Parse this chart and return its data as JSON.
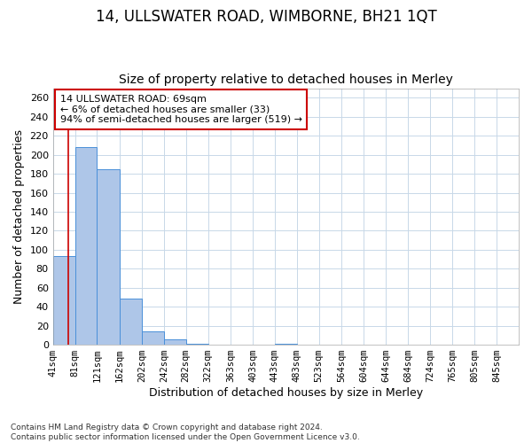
{
  "title": "14, ULLSWATER ROAD, WIMBORNE, BH21 1QT",
  "subtitle": "Size of property relative to detached houses in Merley",
  "xlabel": "Distribution of detached houses by size in Merley",
  "ylabel": "Number of detached properties",
  "bar_left_edges": [
    41,
    81,
    121,
    162,
    202,
    242,
    282,
    322,
    363,
    403,
    443,
    483,
    523,
    564,
    604,
    644,
    684,
    724,
    765,
    805
  ],
  "bar_widths": [
    40,
    40,
    41,
    40,
    40,
    40,
    40,
    41,
    40,
    40,
    40,
    40,
    41,
    40,
    40,
    40,
    40,
    41,
    40,
    40
  ],
  "bar_heights": [
    93,
    208,
    185,
    49,
    14,
    6,
    1,
    0,
    0,
    0,
    1,
    0,
    0,
    0,
    0,
    0,
    0,
    0,
    0,
    0
  ],
  "bar_color": "#aec6e8",
  "bar_edge_color": "#4a90d9",
  "x_tick_labels": [
    "41sqm",
    "81sqm",
    "121sqm",
    "162sqm",
    "202sqm",
    "242sqm",
    "282sqm",
    "322sqm",
    "363sqm",
    "403sqm",
    "443sqm",
    "483sqm",
    "523sqm",
    "564sqm",
    "604sqm",
    "644sqm",
    "684sqm",
    "724sqm",
    "765sqm",
    "805sqm",
    "845sqm"
  ],
  "x_tick_positions": [
    41,
    81,
    121,
    162,
    202,
    242,
    282,
    322,
    363,
    403,
    443,
    483,
    523,
    564,
    604,
    644,
    684,
    724,
    765,
    805,
    845
  ],
  "ylim": [
    0,
    270
  ],
  "xlim": [
    41,
    885
  ],
  "property_line_x": 69,
  "property_line_color": "#cc0000",
  "annotation_text": "14 ULLSWATER ROAD: 69sqm\n← 6% of detached houses are smaller (33)\n94% of semi-detached houses are larger (519) →",
  "annotation_box_color": "#cc0000",
  "footer_text": "Contains HM Land Registry data © Crown copyright and database right 2024.\nContains public sector information licensed under the Open Government Licence v3.0.",
  "bg_color": "#ffffff",
  "grid_color": "#c8d8e8",
  "title_fontsize": 12,
  "subtitle_fontsize": 10,
  "tick_fontsize": 7.5,
  "ylabel_fontsize": 9,
  "xlabel_fontsize": 9,
  "annotation_fontsize": 8,
  "footer_fontsize": 6.5
}
